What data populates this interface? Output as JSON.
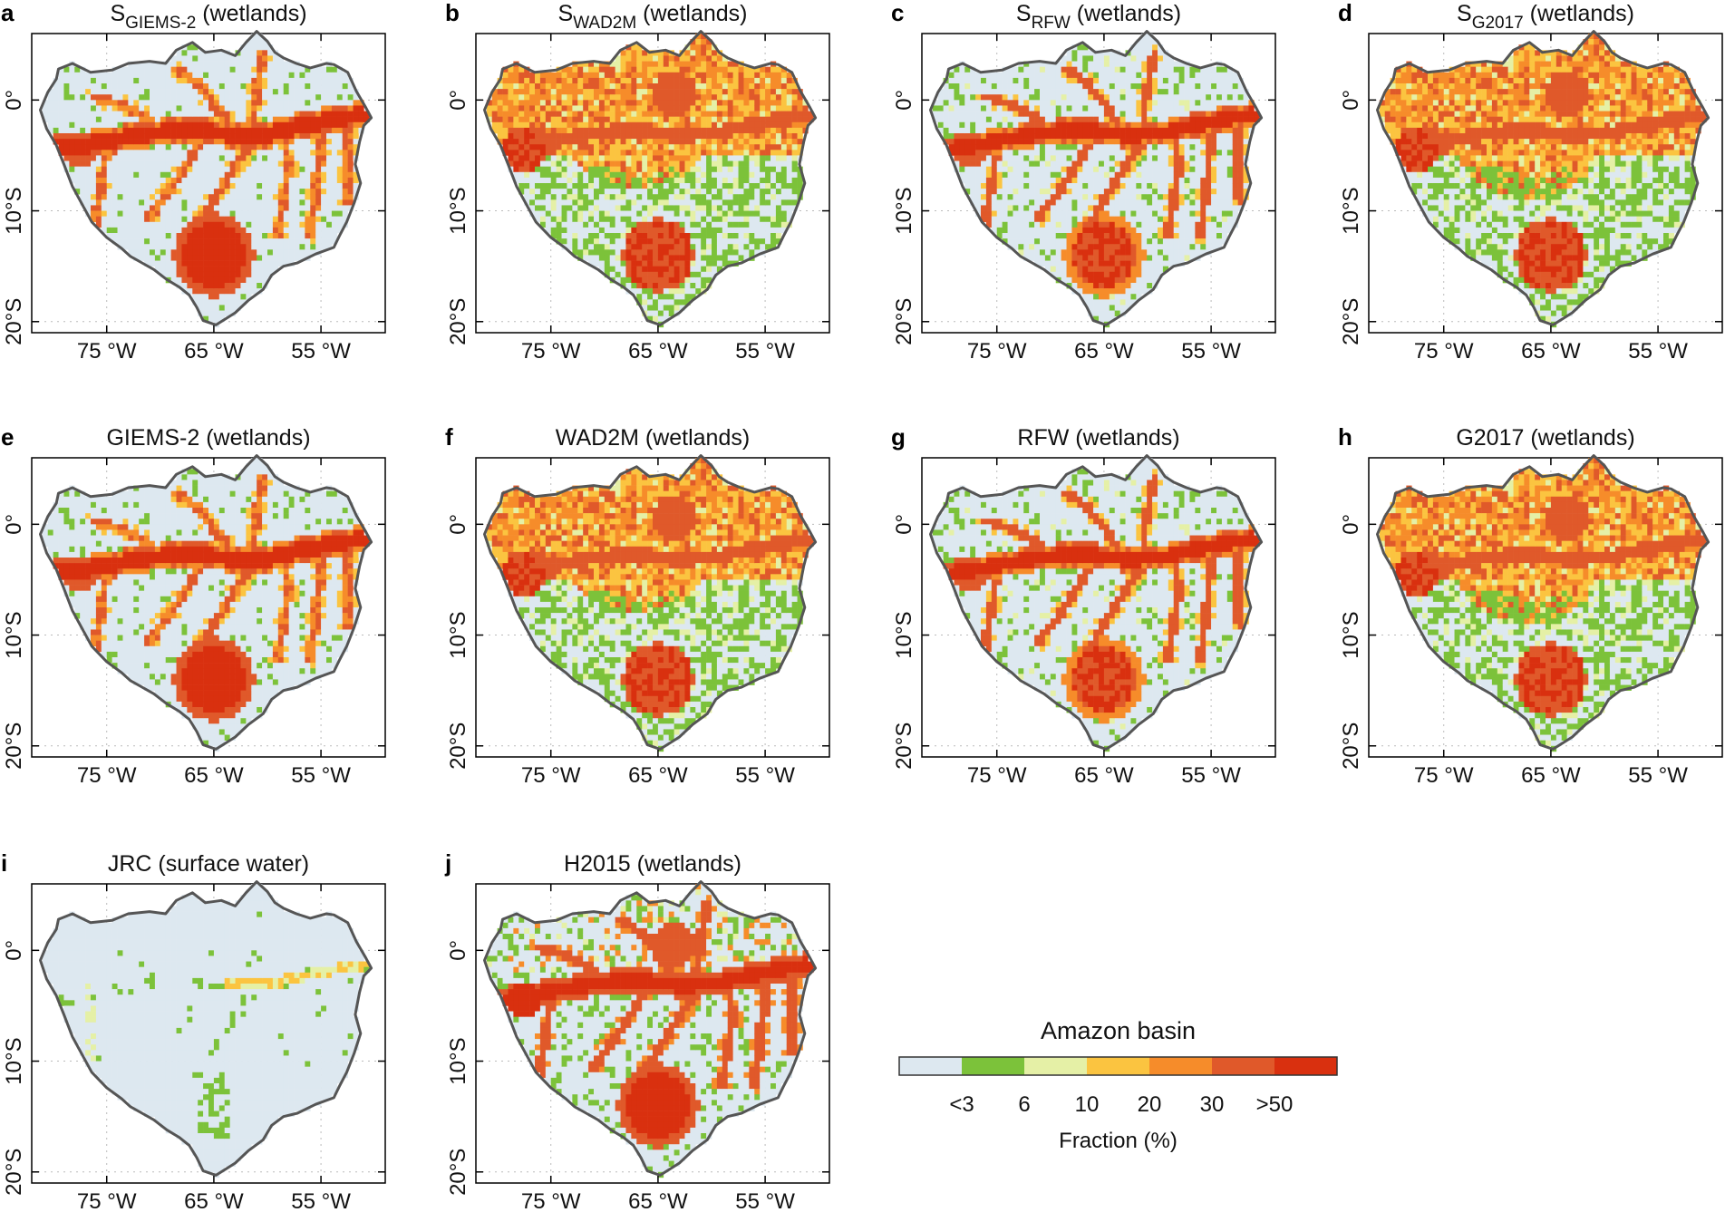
{
  "chart_data": [
    {
      "type": "heatmap",
      "letter": "a",
      "title_main": "S",
      "title_sub": "GIEMS-2",
      "title_rest": " (wetlands)",
      "pattern": "sgiems",
      "xticks": [
        "75 °W",
        "65 °W",
        "55 °W"
      ],
      "yticks": [
        "0°",
        "10°S",
        "20°S"
      ],
      "xlim": [
        -82,
        -49
      ],
      "ylim": [
        -21,
        6
      ]
    },
    {
      "type": "heatmap",
      "letter": "b",
      "title_main": "S",
      "title_sub": "WAD2M",
      "title_rest": " (wetlands)",
      "pattern": "swad",
      "xticks": [
        "75 °W",
        "65 °W",
        "55 °W"
      ],
      "yticks": [
        "0°",
        "10°S",
        "20°S"
      ],
      "xlim": [
        -82,
        -49
      ],
      "ylim": [
        -21,
        6
      ]
    },
    {
      "type": "heatmap",
      "letter": "c",
      "title_main": "S",
      "title_sub": "RFW",
      "title_rest": " (wetlands)",
      "pattern": "srfw",
      "xticks": [
        "75 °W",
        "65 °W",
        "55 °W"
      ],
      "yticks": [
        "0°",
        "10°S",
        "20°S"
      ],
      "xlim": [
        -82,
        -49
      ],
      "ylim": [
        -21,
        6
      ]
    },
    {
      "type": "heatmap",
      "letter": "d",
      "title_main": "S",
      "title_sub": "G2017",
      "title_rest": " (wetlands)",
      "pattern": "sg2017",
      "xticks": [
        "75 °W",
        "65 °W",
        "55 °W"
      ],
      "yticks": [
        "0°",
        "10°S",
        "20°S"
      ],
      "xlim": [
        -82,
        -49
      ],
      "ylim": [
        -21,
        6
      ]
    },
    {
      "type": "heatmap",
      "letter": "e",
      "title_main": "GIEMS-2 (wetlands)",
      "title_sub": "",
      "title_rest": "",
      "pattern": "giems",
      "xticks": [
        "75 °W",
        "65 °W",
        "55 °W"
      ],
      "yticks": [
        "0°",
        "10°S",
        "20°S"
      ],
      "xlim": [
        -82,
        -49
      ],
      "ylim": [
        -21,
        6
      ]
    },
    {
      "type": "heatmap",
      "letter": "f",
      "title_main": "WAD2M (wetlands)",
      "title_sub": "",
      "title_rest": "",
      "pattern": "wad",
      "xticks": [
        "75 °W",
        "65 °W",
        "55 °W"
      ],
      "yticks": [
        "0°",
        "10°S",
        "20°S"
      ],
      "xlim": [
        -82,
        -49
      ],
      "ylim": [
        -21,
        6
      ]
    },
    {
      "type": "heatmap",
      "letter": "g",
      "title_main": "RFW (wetlands)",
      "title_sub": "",
      "title_rest": "",
      "pattern": "rfw",
      "xticks": [
        "75 °W",
        "65 °W",
        "55 °W"
      ],
      "yticks": [
        "0°",
        "10°S",
        "20°S"
      ],
      "xlim": [
        -82,
        -49
      ],
      "ylim": [
        -21,
        6
      ]
    },
    {
      "type": "heatmap",
      "letter": "h",
      "title_main": "G2017 (wetlands)",
      "title_sub": "",
      "title_rest": "",
      "pattern": "g2017",
      "xticks": [
        "75 °W",
        "65 °W",
        "55 °W"
      ],
      "yticks": [
        "0°",
        "10°S",
        "20°S"
      ],
      "xlim": [
        -82,
        -49
      ],
      "ylim": [
        -21,
        6
      ]
    },
    {
      "type": "heatmap",
      "letter": "i",
      "title_main": "JRC (surface water)",
      "title_sub": "",
      "title_rest": "",
      "pattern": "jrc",
      "xticks": [
        "75 °W",
        "65 °W",
        "55 °W"
      ],
      "yticks": [
        "0°",
        "10°S",
        "20°S"
      ],
      "xlim": [
        -82,
        -49
      ],
      "ylim": [
        -21,
        6
      ]
    },
    {
      "type": "heatmap",
      "letter": "j",
      "title_main": "H2015 (wetlands)",
      "title_sub": "",
      "title_rest": "",
      "pattern": "h2015",
      "xticks": [
        "75 °W",
        "65 °W",
        "55 °W"
      ],
      "yticks": [
        "0°",
        "10°S",
        "20°S"
      ],
      "xlim": [
        -82,
        -49
      ],
      "ylim": [
        -21,
        6
      ]
    }
  ],
  "legend": {
    "title": "Amazon basin",
    "label": "Fraction (%)",
    "tick_labels": [
      "<3",
      "6",
      "10",
      "20",
      "30",
      ">50"
    ],
    "colors": [
      "#dde8f0",
      "#7cc23a",
      "#e5f0a6",
      "#fbc440",
      "#f68c2a",
      "#e0592a",
      "#d9300f"
    ]
  }
}
